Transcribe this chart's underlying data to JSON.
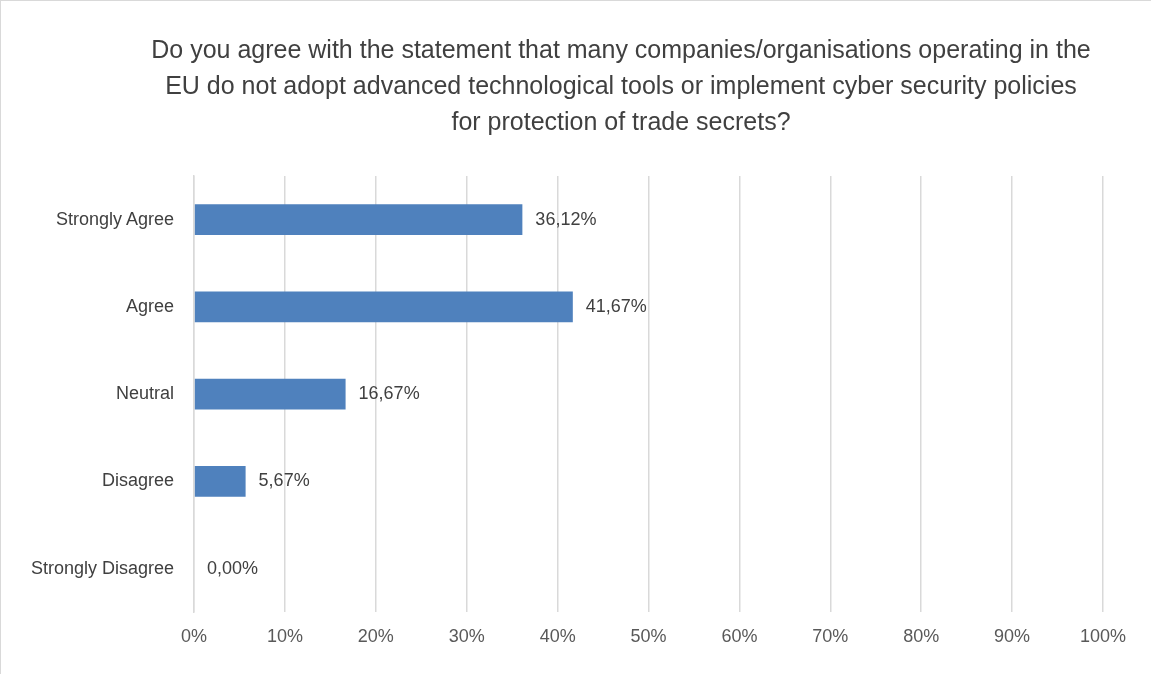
{
  "chart_data": {
    "type": "bar",
    "orientation": "horizontal",
    "title": "Do you agree with the statement that many companies/organisations operating in the EU do not adopt advanced technological tools or implement cyber security policies for protection of trade secrets?",
    "categories": [
      "Strongly Agree",
      "Agree",
      "Neutral",
      "Disagree",
      "Strongly Disagree"
    ],
    "values": [
      36.12,
      41.67,
      16.67,
      5.67,
      0
    ],
    "value_labels": [
      "36,12%",
      "41,67%",
      "16,67%",
      "5,67%",
      "0,00%"
    ],
    "color": "#4f81bd",
    "xlim": [
      0,
      100
    ],
    "xticks": [
      {
        "value": 0,
        "label": "0%"
      },
      {
        "value": 10,
        "label": "10%"
      },
      {
        "value": 20,
        "label": "20%"
      },
      {
        "value": 30,
        "label": "30%"
      },
      {
        "value": 40,
        "label": "40%"
      },
      {
        "value": 50,
        "label": "50%"
      },
      {
        "value": 60,
        "label": "60%"
      },
      {
        "value": 70,
        "label": "70%"
      },
      {
        "value": 80,
        "label": "80%"
      },
      {
        "value": 90,
        "label": "90%"
      },
      {
        "value": 100,
        "label": "100%"
      }
    ],
    "grid": "x"
  }
}
